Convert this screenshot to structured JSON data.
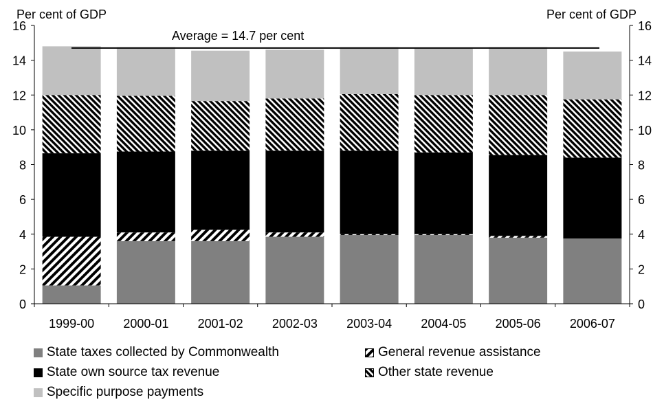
{
  "chart_data": {
    "type": "bar",
    "stacked": true,
    "left_axis_label": "Per cent of GDP",
    "right_axis_label": "Per cent of GDP",
    "ylim": [
      0,
      16
    ],
    "yticks": [
      0,
      2,
      4,
      6,
      8,
      10,
      12,
      14,
      16
    ],
    "categories": [
      "1999-00",
      "2000-01",
      "2001-02",
      "2002-03",
      "2003-04",
      "2004-05",
      "2005-06",
      "2006-07"
    ],
    "series": [
      {
        "name": "State taxes collected by Commonwealth",
        "color": "#808080",
        "pattern": "solid",
        "values": [
          1.05,
          3.6,
          3.6,
          3.85,
          3.95,
          3.95,
          3.8,
          3.75
        ]
      },
      {
        "name": "General revenue assistance",
        "color": "#000000",
        "pattern": "diagonal-hatch",
        "values": [
          2.8,
          0.5,
          0.65,
          0.25,
          0.05,
          0.05,
          0.1,
          0.0
        ]
      },
      {
        "name": "State own source tax revenue",
        "color": "#000000",
        "pattern": "solid",
        "values": [
          4.8,
          4.65,
          4.55,
          4.7,
          4.8,
          4.7,
          4.65,
          4.65
        ]
      },
      {
        "name": "Other state revenue",
        "color": "#000000",
        "pattern": "dense-hatch",
        "values": [
          3.35,
          3.2,
          2.85,
          3.0,
          3.25,
          3.3,
          3.45,
          3.35
        ]
      },
      {
        "name": "Specific purpose payments",
        "color": "#c0c0c0",
        "pattern": "solid",
        "values": [
          2.8,
          2.8,
          2.9,
          2.8,
          2.7,
          2.7,
          2.75,
          2.75
        ]
      }
    ],
    "average": {
      "value": 14.7,
      "label": "Average = 14.7 per cent"
    },
    "legend_position": "bottom",
    "grid": false
  }
}
